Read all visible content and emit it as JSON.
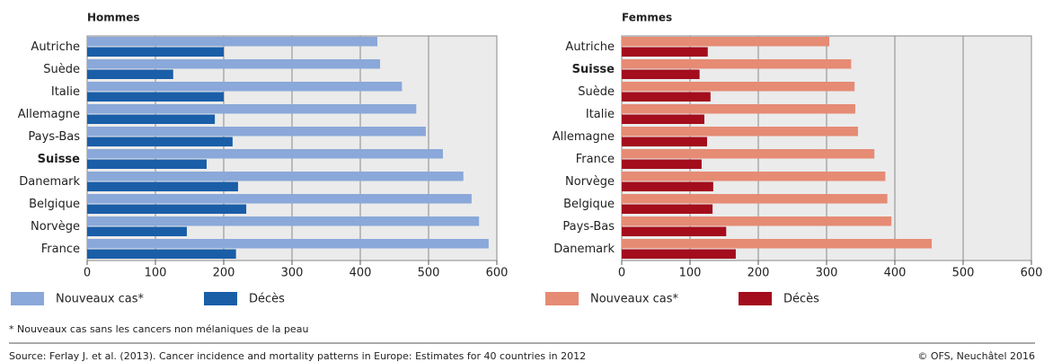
{
  "chart_data": [
    {
      "type": "bar",
      "orientation": "horizontal",
      "title": "Hommes",
      "highlight": "Suisse",
      "categories": [
        "Autriche",
        "Suède",
        "Italie",
        "Allemagne",
        "Pays-Bas",
        "Suisse",
        "Danemark",
        "Belgique",
        "Norvège",
        "France"
      ],
      "series": [
        {
          "name": "Nouveaux cas*",
          "color": "#8aa8d9",
          "values": [
            425,
            429,
            461,
            482,
            496,
            521,
            551,
            563,
            574,
            588
          ]
        },
        {
          "name": "Décès",
          "color": "#1a5ea8",
          "values": [
            200,
            126,
            200,
            187,
            213,
            175,
            221,
            233,
            146,
            218
          ]
        }
      ],
      "xlim": [
        0,
        600
      ],
      "xticks": [
        0,
        100,
        200,
        300,
        400,
        500,
        600
      ],
      "grid": true
    },
    {
      "type": "bar",
      "orientation": "horizontal",
      "title": "Femmes",
      "highlight": "Suisse",
      "categories": [
        "Autriche",
        "Suisse",
        "Suède",
        "Italie",
        "Allemagne",
        "France",
        "Norvège",
        "Belgique",
        "Pays-Bas",
        "Danemark"
      ],
      "series": [
        {
          "name": "Nouveaux cas*",
          "color": "#e68b74",
          "values": [
            304,
            336,
            341,
            342,
            346,
            370,
            386,
            389,
            395,
            454
          ]
        },
        {
          "name": "Décès",
          "color": "#a30d1c",
          "values": [
            126,
            114,
            130,
            121,
            125,
            117,
            134,
            133,
            153,
            167
          ]
        }
      ],
      "xlim": [
        0,
        600
      ],
      "xticks": [
        0,
        100,
        200,
        300,
        400,
        500,
        600
      ],
      "grid": true
    }
  ],
  "footnote": "* Nouveaux cas sans les cancers non mélaniques de la peau",
  "source": "Source: Ferlay J. et al. (2013). Cancer incidence and mortality patterns in Europe: Estimates for 40 countries in 2012",
  "copyright": "© OFS, Neuchâtel 2016"
}
